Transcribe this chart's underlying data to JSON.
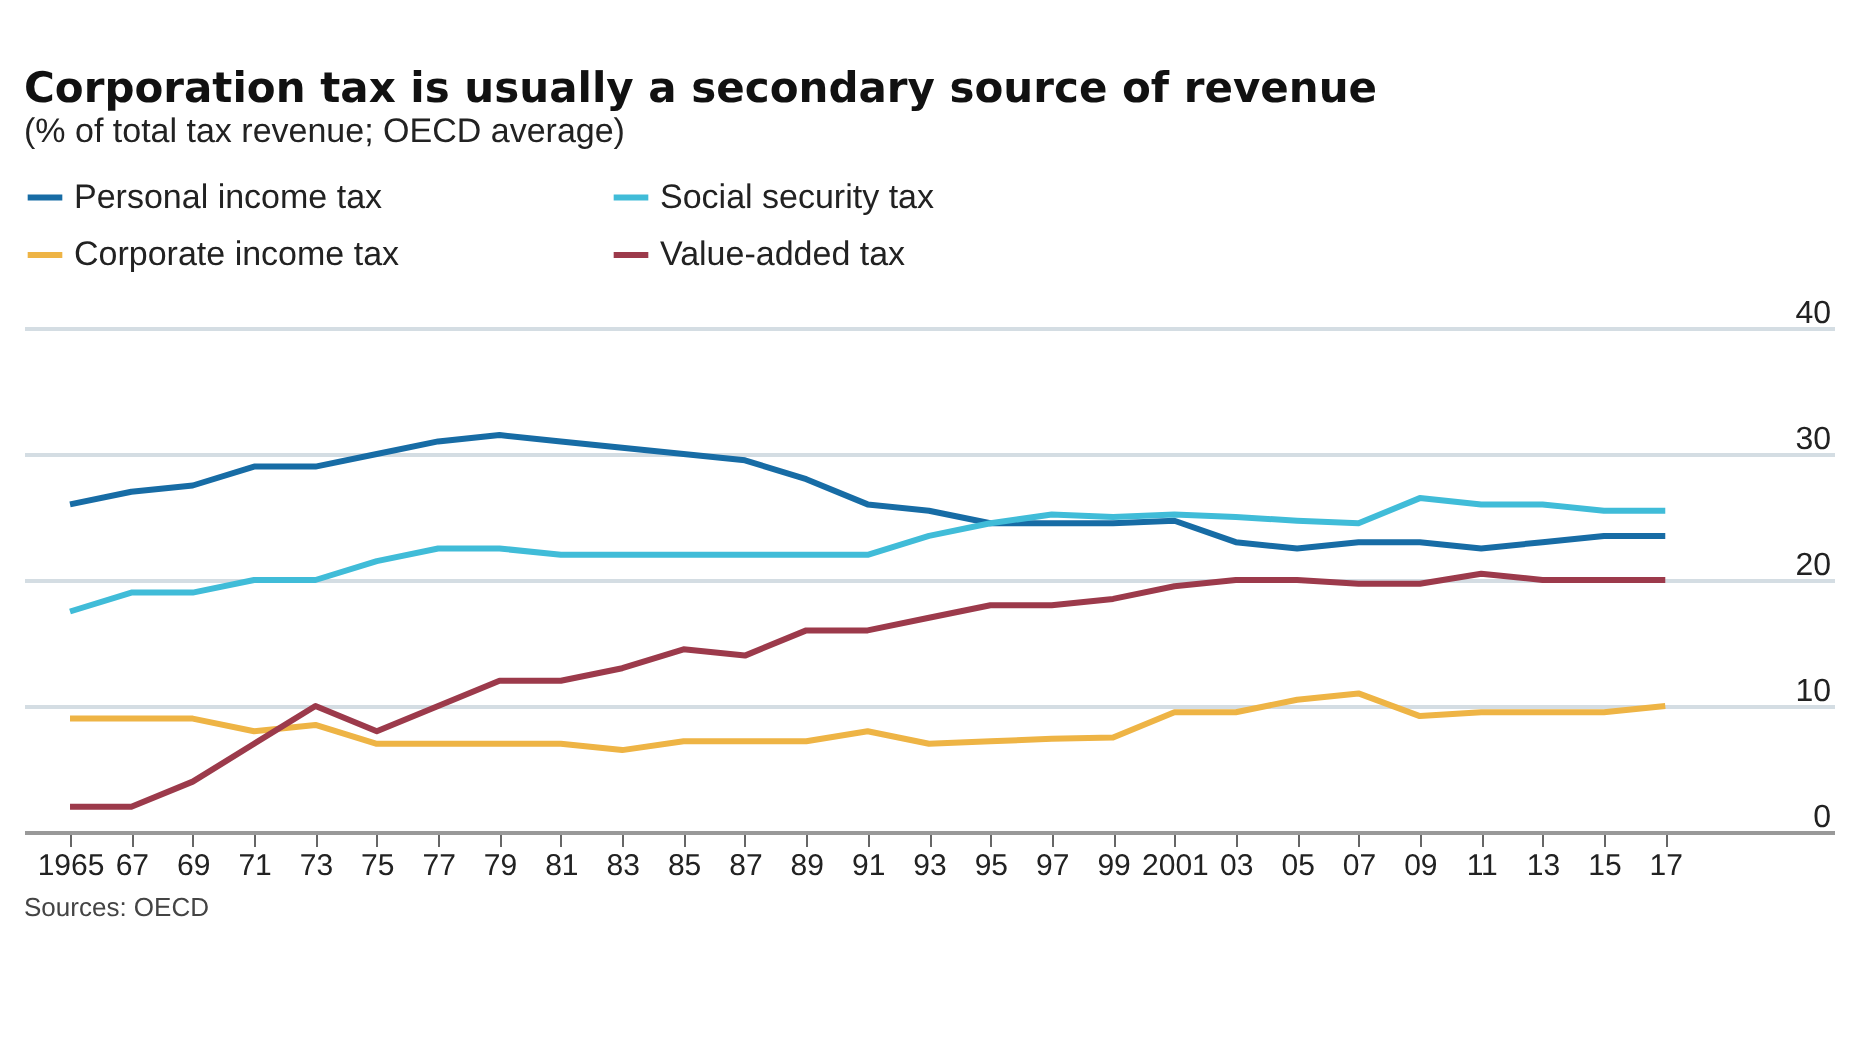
{
  "chart_data": {
    "type": "line",
    "title": "Corporation tax is usually a secondary source of revenue",
    "subtitle": "(% of total tax revenue; OECD average)",
    "annotations": [
      "Sources: OECD"
    ],
    "x": [
      1965,
      1967,
      1969,
      1971,
      1973,
      1975,
      1977,
      1979,
      1981,
      1983,
      1985,
      1987,
      1989,
      1991,
      1993,
      1995,
      1997,
      1999,
      2001,
      2003,
      2005,
      2007,
      2009,
      2011,
      2013,
      2015,
      2017
    ],
    "series": [
      {
        "name": "Personal income tax",
        "color": "#176ca5",
        "values": [
          26,
          27,
          27.5,
          29,
          29,
          30,
          31,
          31.5,
          31,
          30.5,
          30,
          29.5,
          28,
          26,
          25.5,
          24.5,
          24.5,
          24.5,
          24.7,
          23,
          22.5,
          23,
          23,
          22.5,
          23,
          23.5,
          23.5
        ]
      },
      {
        "name": "Social security tax",
        "color": "#40bcd8",
        "values": [
          17.5,
          19,
          19,
          20,
          20,
          21.5,
          22.5,
          22.5,
          22,
          22,
          22,
          22,
          22,
          22,
          23.5,
          24.5,
          25.2,
          25,
          25.2,
          25,
          24.7,
          24.5,
          26.5,
          26,
          26,
          25.5,
          25.5
        ]
      },
      {
        "name": "Corporate income tax",
        "color": "#eeb445",
        "values": [
          9,
          9,
          9,
          8,
          8.5,
          7,
          7,
          7,
          7,
          6.5,
          7.2,
          7.2,
          7.2,
          8,
          7,
          7.2,
          7.4,
          7.5,
          9.5,
          9.5,
          10.5,
          11,
          9.2,
          9.5,
          9.5,
          9.5,
          10
        ]
      },
      {
        "name": "Value-added tax",
        "color": "#9c3a4b",
        "values": [
          2,
          2,
          4,
          7,
          10,
          8,
          10,
          12,
          12,
          13,
          14.5,
          14,
          16,
          16,
          17,
          18,
          18,
          18.5,
          19.5,
          20,
          20,
          19.7,
          19.7,
          20.5,
          20,
          20,
          20
        ]
      }
    ],
    "xlim": [
      1963.5,
      2022.5
    ],
    "xticks": [
      {
        "value": 1965,
        "label": "1965"
      },
      {
        "value": 1967,
        "label": "67"
      },
      {
        "value": 1969,
        "label": "69"
      },
      {
        "value": 1971,
        "label": "71"
      },
      {
        "value": 1973,
        "label": "73"
      },
      {
        "value": 1975,
        "label": "75"
      },
      {
        "value": 1977,
        "label": "77"
      },
      {
        "value": 1979,
        "label": "79"
      },
      {
        "value": 1981,
        "label": "81"
      },
      {
        "value": 1983,
        "label": "83"
      },
      {
        "value": 1985,
        "label": "85"
      },
      {
        "value": 1987,
        "label": "87"
      },
      {
        "value": 1989,
        "label": "89"
      },
      {
        "value": 1991,
        "label": "91"
      },
      {
        "value": 1993,
        "label": "93"
      },
      {
        "value": 1995,
        "label": "95"
      },
      {
        "value": 1997,
        "label": "97"
      },
      {
        "value": 1999,
        "label": "99"
      },
      {
        "value": 2001,
        "label": "2001"
      },
      {
        "value": 2003,
        "label": "03"
      },
      {
        "value": 2005,
        "label": "05"
      },
      {
        "value": 2007,
        "label": "07"
      },
      {
        "value": 2009,
        "label": "09"
      },
      {
        "value": 2011,
        "label": "11"
      },
      {
        "value": 2013,
        "label": "13"
      },
      {
        "value": 2015,
        "label": "15"
      },
      {
        "value": 2017,
        "label": "17"
      }
    ],
    "ylim": [
      0,
      40
    ],
    "yticks": [
      0,
      10,
      20,
      30,
      40
    ],
    "grid": "y",
    "legend": "top left",
    "line_style": "solid"
  }
}
